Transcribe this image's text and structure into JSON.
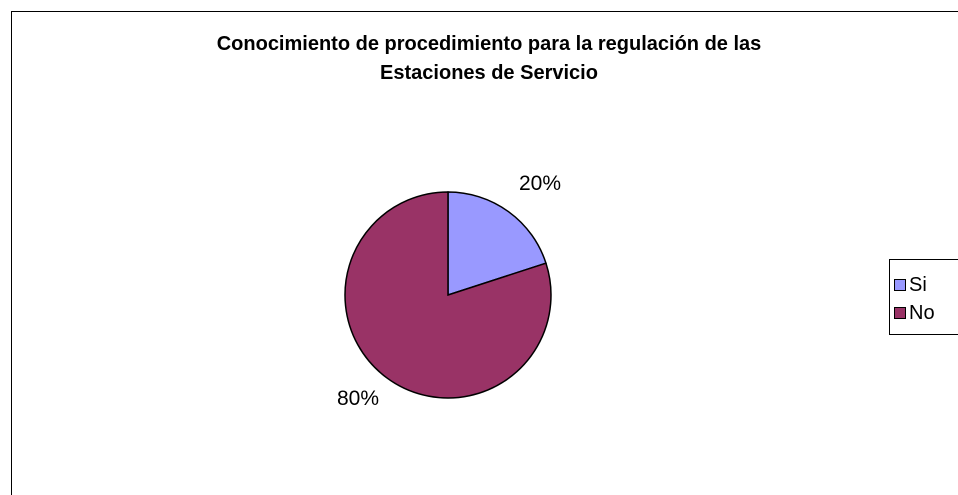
{
  "chart_data": {
    "type": "pie",
    "title": "Conocimiento de procedimiento para la regulación de las Estaciones de Servicio",
    "title_lines": [
      "Conocimiento de procedimiento para la regulación de las",
      "Estaciones de Servicio"
    ],
    "categories": [
      "Si",
      "No"
    ],
    "values": [
      20,
      80
    ],
    "labels": [
      "20%",
      "80%"
    ],
    "colors": [
      "#9999FF",
      "#993366"
    ],
    "legend_position": "right"
  },
  "legend": {
    "items": [
      {
        "label": "Si",
        "color": "#9999FF"
      },
      {
        "label": "No",
        "color": "#993366"
      }
    ]
  }
}
